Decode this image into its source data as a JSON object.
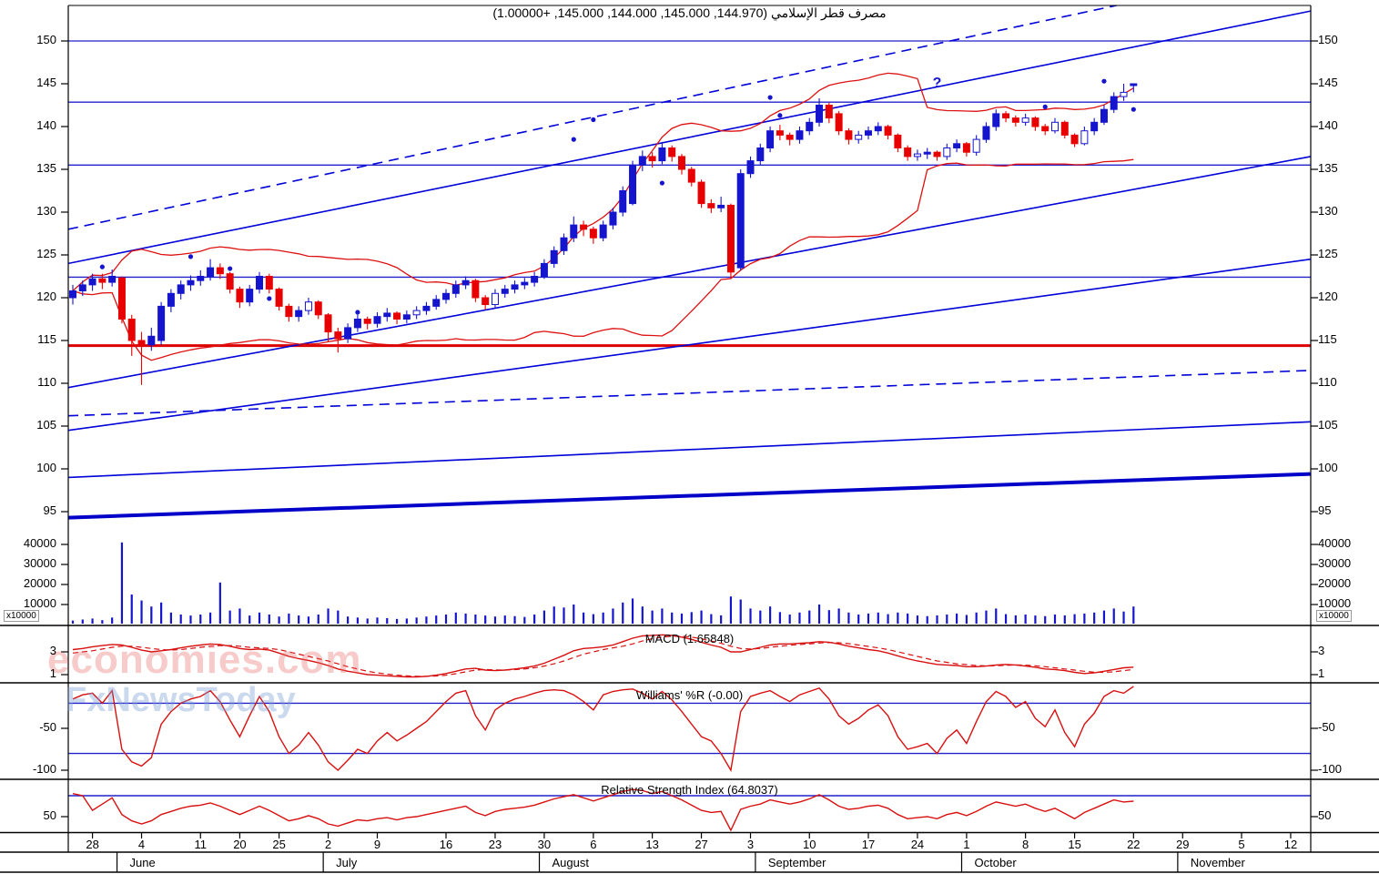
{
  "title": "مصرف قطر الإسلامي (144.970, 145.000, 144.000, 145.000, +1.00000)",
  "watermark": {
    "line1": "economies.com",
    "line2": "FxNewsToday"
  },
  "colors": {
    "background": "#FFFFFF",
    "up": "#1515CE",
    "down": "#E80000",
    "band": "#DD1111",
    "support_blue": "#2222CC",
    "trend_blue": "#0000D8",
    "red_level": "#DD0000",
    "thick_ma": "#0000C8",
    "indicator_red": "#D81010",
    "axis": "#000000"
  },
  "panels": {
    "price": {
      "yticks": [
        150,
        145,
        140,
        135,
        130,
        125,
        120,
        115,
        110,
        105,
        100,
        95
      ],
      "h_levels_blue": [
        150,
        142.85,
        135.5,
        122.4
      ],
      "h_level_red": 114.4
    },
    "volume": {
      "yticks": [
        40000,
        30000,
        20000,
        10000
      ],
      "multiplier_label": "x10000"
    },
    "macd": {
      "label": "MACD (1.65848)",
      "yticks": [
        3,
        1
      ]
    },
    "williams": {
      "label": "Williams' %R (-0.00)",
      "yticks": [
        -50,
        -100
      ],
      "h_levels": [
        -20,
        -80
      ]
    },
    "rsi": {
      "label": "Relative Strength Index (64.8037)",
      "yticks": [
        50
      ],
      "h_levels": [
        70
      ]
    }
  },
  "xaxis": {
    "tick_days": [
      2,
      7,
      13,
      17,
      21,
      26,
      31,
      38,
      43,
      48,
      53,
      59,
      64,
      69,
      75,
      81,
      86,
      91,
      97,
      102,
      108,
      113,
      119,
      124
    ],
    "tick_labels": [
      "28",
      "4",
      "11",
      "20",
      "25",
      "2",
      "9",
      "16",
      "23",
      "30",
      "6",
      "13",
      "27",
      "3",
      "10",
      "17",
      "24",
      "1",
      "8",
      "15",
      "22",
      "29",
      "5",
      "12"
    ],
    "month_sep_days": [
      4.5,
      25.5,
      47.5,
      69.5,
      90.5,
      112.5
    ],
    "month_labels": [
      "June",
      "July",
      "August",
      "September",
      "October",
      "November"
    ]
  },
  "chart_data": {
    "type": "candlestick+indicators",
    "price_ylim": [
      95,
      150
    ],
    "ohlc": [
      [
        120.0,
        121.5,
        119.2,
        120.8
      ],
      [
        120.8,
        122.0,
        120.2,
        121.5
      ],
      [
        121.5,
        122.8,
        120.8,
        122.2
      ],
      [
        122.2,
        122.8,
        121.0,
        121.8
      ],
      [
        121.8,
        123.3,
        121.3,
        122.5
      ],
      [
        122.3,
        122.5,
        117.0,
        117.5
      ],
      [
        117.5,
        118.0,
        113.2,
        115.0
      ],
      [
        115.0,
        116.0,
        109.8,
        114.5
      ],
      [
        114.5,
        116.5,
        113.8,
        115.5
      ],
      [
        115.0,
        119.5,
        114.5,
        119.0
      ],
      [
        119.0,
        121.0,
        118.3,
        120.5
      ],
      [
        120.5,
        122.0,
        119.8,
        121.5
      ],
      [
        121.5,
        122.6,
        120.8,
        122.0
      ],
      [
        122.0,
        123.2,
        121.4,
        122.5
      ],
      [
        122.5,
        124.5,
        122.0,
        123.5
      ],
      [
        123.5,
        124.0,
        122.2,
        122.8
      ],
      [
        122.8,
        123.0,
        120.5,
        121.0
      ],
      [
        121.0,
        121.3,
        118.8,
        119.5
      ],
      [
        119.5,
        121.5,
        119.0,
        121.0
      ],
      [
        121.0,
        123.0,
        120.5,
        122.5
      ],
      [
        122.5,
        122.8,
        120.5,
        121.0
      ],
      [
        121.0,
        121.2,
        118.5,
        119.0
      ],
      [
        119.0,
        119.3,
        117.2,
        117.8
      ],
      [
        117.8,
        119.0,
        117.2,
        118.5
      ],
      [
        118.5,
        120.0,
        118.0,
        119.5
      ],
      [
        119.5,
        119.7,
        117.5,
        118.0
      ],
      [
        118.0,
        118.2,
        114.8,
        116.0
      ],
      [
        116.0,
        116.5,
        113.6,
        115.2
      ],
      [
        115.2,
        117.0,
        114.7,
        116.5
      ],
      [
        116.5,
        118.0,
        116.0,
        117.5
      ],
      [
        117.5,
        117.8,
        116.3,
        117.0
      ],
      [
        117.0,
        118.3,
        116.5,
        117.8
      ],
      [
        117.8,
        118.8,
        117.2,
        118.2
      ],
      [
        118.2,
        118.4,
        116.9,
        117.5
      ],
      [
        117.5,
        118.5,
        117.0,
        118.0
      ],
      [
        118.0,
        119.0,
        117.5,
        118.5
      ],
      [
        118.5,
        119.5,
        118.0,
        119.0
      ],
      [
        119.0,
        120.3,
        118.6,
        119.8
      ],
      [
        119.8,
        121.0,
        119.3,
        120.5
      ],
      [
        120.5,
        122.0,
        120.0,
        121.5
      ],
      [
        121.5,
        122.5,
        121.0,
        122.0
      ],
      [
        122.0,
        122.2,
        119.5,
        120.0
      ],
      [
        120.0,
        120.3,
        118.6,
        119.2
      ],
      [
        119.2,
        121.0,
        118.8,
        120.5
      ],
      [
        120.5,
        121.5,
        120.0,
        121.0
      ],
      [
        121.0,
        122.0,
        120.5,
        121.5
      ],
      [
        121.5,
        122.3,
        121.0,
        121.8
      ],
      [
        121.8,
        123.0,
        121.3,
        122.5
      ],
      [
        122.5,
        124.5,
        122.2,
        124.0
      ],
      [
        124.0,
        126.0,
        123.5,
        125.5
      ],
      [
        125.5,
        127.5,
        125.0,
        127.0
      ],
      [
        127.0,
        129.5,
        126.5,
        128.5
      ],
      [
        128.5,
        129.0,
        127.2,
        128.0
      ],
      [
        128.0,
        128.3,
        126.3,
        127.0
      ],
      [
        127.0,
        129.0,
        126.6,
        128.5
      ],
      [
        128.5,
        130.5,
        128.0,
        130.0
      ],
      [
        130.0,
        133.0,
        129.5,
        132.5
      ],
      [
        131.0,
        136.0,
        130.8,
        135.5
      ],
      [
        135.5,
        137.2,
        134.8,
        136.5
      ],
      [
        136.5,
        137.0,
        135.2,
        136.0
      ],
      [
        136.0,
        138.2,
        135.6,
        137.5
      ],
      [
        137.5,
        137.8,
        135.9,
        136.5
      ],
      [
        136.5,
        136.8,
        134.4,
        135.0
      ],
      [
        135.0,
        135.3,
        133.0,
        133.5
      ],
      [
        133.5,
        133.8,
        130.5,
        131.0
      ],
      [
        131.0,
        131.5,
        129.9,
        130.5
      ],
      [
        130.5,
        131.8,
        130.0,
        130.8
      ],
      [
        130.8,
        131.0,
        122.3,
        123.0
      ],
      [
        123.5,
        135.0,
        123.2,
        134.5
      ],
      [
        134.5,
        136.5,
        134.0,
        136.0
      ],
      [
        136.0,
        138.0,
        135.5,
        137.5
      ],
      [
        137.5,
        140.0,
        137.0,
        139.5
      ],
      [
        139.5,
        140.2,
        138.4,
        139.0
      ],
      [
        139.0,
        139.3,
        137.8,
        138.5
      ],
      [
        138.5,
        140.0,
        138.0,
        139.5
      ],
      [
        139.5,
        141.0,
        139.0,
        140.5
      ],
      [
        140.5,
        143.3,
        140.0,
        142.5
      ],
      [
        142.5,
        142.8,
        140.4,
        141.0
      ],
      [
        141.5,
        141.8,
        139.0,
        139.5
      ],
      [
        139.5,
        139.8,
        137.9,
        138.5
      ],
      [
        138.5,
        139.5,
        138.0,
        139.0
      ],
      [
        139.0,
        140.0,
        138.5,
        139.5
      ],
      [
        139.5,
        140.5,
        139.0,
        140.0
      ],
      [
        140.0,
        140.2,
        138.5,
        139.0
      ],
      [
        139.0,
        139.2,
        137.0,
        137.5
      ],
      [
        137.5,
        137.8,
        136.0,
        136.5
      ],
      [
        136.5,
        137.3,
        136.0,
        136.8
      ],
      [
        136.8,
        137.5,
        136.2,
        137.0
      ],
      [
        137.0,
        137.2,
        136.0,
        136.5
      ],
      [
        136.5,
        138.0,
        136.1,
        137.5
      ],
      [
        137.5,
        138.5,
        137.0,
        138.0
      ],
      [
        138.0,
        138.2,
        136.5,
        137.0
      ],
      [
        137.0,
        139.0,
        136.6,
        138.5
      ],
      [
        138.5,
        140.5,
        138.1,
        140.0
      ],
      [
        140.0,
        142.0,
        139.5,
        141.5
      ],
      [
        141.5,
        141.8,
        140.5,
        141.0
      ],
      [
        141.0,
        141.3,
        140.0,
        140.5
      ],
      [
        140.5,
        141.5,
        140.1,
        141.0
      ],
      [
        141.0,
        141.2,
        139.5,
        140.0
      ],
      [
        140.0,
        140.3,
        139.0,
        139.5
      ],
      [
        139.5,
        141.0,
        139.2,
        140.5
      ],
      [
        140.5,
        140.7,
        138.6,
        139.0
      ],
      [
        139.0,
        139.2,
        137.6,
        138.0
      ],
      [
        138.0,
        140.0,
        137.8,
        139.5
      ],
      [
        139.5,
        141.0,
        139.0,
        140.5
      ],
      [
        140.5,
        142.5,
        140.2,
        142.0
      ],
      [
        142.0,
        144.0,
        141.6,
        143.5
      ],
      [
        143.5,
        145.0,
        143.0,
        144.0
      ],
      [
        144.97,
        145.0,
        144.0,
        145.0
      ]
    ],
    "hollow_days": [
      24,
      35,
      43,
      73,
      80,
      86,
      89,
      92,
      96,
      97,
      100,
      103,
      107
    ],
    "volume": [
      2000,
      2500,
      3000,
      2200,
      3500,
      41000,
      15000,
      12000,
      9000,
      11000,
      6000,
      5000,
      4500,
      5000,
      6000,
      21000,
      7000,
      8000,
      4500,
      6000,
      5000,
      4000,
      5500,
      4500,
      4000,
      5000,
      8000,
      7000,
      4000,
      3500,
      3000,
      3500,
      3200,
      2800,
      3000,
      3500,
      4000,
      4500,
      5000,
      6000,
      5500,
      5000,
      4500,
      4000,
      4500,
      4200,
      3800,
      5000,
      7000,
      9000,
      8500,
      10000,
      6000,
      5200,
      6000,
      8000,
      11000,
      13000,
      9000,
      7000,
      8000,
      6000,
      5500,
      6200,
      7000,
      5200,
      4600,
      14000,
      12500,
      8000,
      7000,
      9000,
      6200,
      5000,
      6000,
      7000,
      10000,
      7200,
      8000,
      6000,
      5000,
      5500,
      6000,
      5200,
      6000,
      5500,
      4500,
      4200,
      4600,
      5000,
      5500,
      4800,
      6000,
      7000,
      8000,
      5200,
      4600,
      5000,
      4500,
      4200,
      5000,
      4600,
      5200,
      5500,
      6000,
      7000,
      8000,
      6500,
      9000
    ],
    "macd_line": [
      3.2,
      3.3,
      3.45,
      3.55,
      3.65,
      3.6,
      3.4,
      3.15,
      3.0,
      3.1,
      3.2,
      3.35,
      3.5,
      3.6,
      3.7,
      3.65,
      3.5,
      3.3,
      3.2,
      3.25,
      3.15,
      2.9,
      2.6,
      2.4,
      2.25,
      2.05,
      1.8,
      1.5,
      1.3,
      1.15,
      1.0,
      0.95,
      0.9,
      0.85,
      0.8,
      0.8,
      0.85,
      0.95,
      1.1,
      1.3,
      1.5,
      1.55,
      1.4,
      1.35,
      1.4,
      1.5,
      1.6,
      1.75,
      2.0,
      2.35,
      2.7,
      3.1,
      3.3,
      3.35,
      3.45,
      3.6,
      3.9,
      4.2,
      4.4,
      4.45,
      4.5,
      4.45,
      4.3,
      4.1,
      3.85,
      3.6,
      3.4,
      3.0,
      3.0,
      3.2,
      3.4,
      3.6,
      3.7,
      3.7,
      3.75,
      3.8,
      3.9,
      3.85,
      3.7,
      3.5,
      3.35,
      3.2,
      3.1,
      2.9,
      2.65,
      2.4,
      2.2,
      2.05,
      1.9,
      1.85,
      1.8,
      1.7,
      1.7,
      1.75,
      1.85,
      1.9,
      1.85,
      1.75,
      1.65,
      1.5,
      1.45,
      1.35,
      1.2,
      1.1,
      1.15,
      1.3,
      1.45,
      1.6,
      1.66
    ],
    "macd_signal": [
      2.9,
      3.0,
      3.1,
      3.25,
      3.4,
      3.5,
      3.5,
      3.4,
      3.3,
      3.2,
      3.15,
      3.2,
      3.3,
      3.4,
      3.5,
      3.55,
      3.55,
      3.5,
      3.4,
      3.35,
      3.3,
      3.2,
      3.0,
      2.8,
      2.6,
      2.4,
      2.2,
      1.95,
      1.7,
      1.5,
      1.3,
      1.15,
      1.05,
      0.95,
      0.9,
      0.85,
      0.85,
      0.88,
      0.95,
      1.08,
      1.25,
      1.4,
      1.45,
      1.42,
      1.4,
      1.44,
      1.5,
      1.6,
      1.75,
      1.95,
      2.2,
      2.5,
      2.8,
      3.0,
      3.2,
      3.35,
      3.5,
      3.7,
      3.95,
      4.15,
      4.3,
      4.38,
      4.38,
      4.3,
      4.15,
      3.95,
      3.75,
      3.5,
      3.3,
      3.25,
      3.3,
      3.4,
      3.5,
      3.58,
      3.65,
      3.7,
      3.78,
      3.82,
      3.8,
      3.72,
      3.6,
      3.48,
      3.35,
      3.2,
      3.0,
      2.8,
      2.6,
      2.4,
      2.2,
      2.08,
      1.95,
      1.88,
      1.8,
      1.77,
      1.78,
      1.82,
      1.85,
      1.83,
      1.78,
      1.7,
      1.6,
      1.5,
      1.4,
      1.3,
      1.22,
      1.2,
      1.25,
      1.35,
      1.45
    ],
    "williams_r": [
      -15,
      -10,
      -8,
      -20,
      -5,
      -75,
      -90,
      -95,
      -85,
      -45,
      -30,
      -20,
      -15,
      -12,
      -5,
      -18,
      -40,
      -60,
      -35,
      -12,
      -30,
      -60,
      -80,
      -70,
      -55,
      -70,
      -90,
      -100,
      -88,
      -75,
      -80,
      -65,
      -55,
      -65,
      -58,
      -50,
      -42,
      -30,
      -18,
      -8,
      -5,
      -35,
      -52,
      -28,
      -20,
      -15,
      -12,
      -8,
      -5,
      -4,
      -5,
      -10,
      -18,
      -28,
      -10,
      -6,
      -4,
      -3,
      -8,
      -15,
      -6,
      -16,
      -30,
      -45,
      -60,
      -65,
      -80,
      -100,
      -30,
      -12,
      -8,
      -5,
      -12,
      -18,
      -10,
      -6,
      -2,
      -15,
      -35,
      -45,
      -38,
      -28,
      -22,
      -35,
      -60,
      -75,
      -72,
      -68,
      -80,
      -62,
      -52,
      -68,
      -42,
      -18,
      -6,
      -12,
      -25,
      -18,
      -38,
      -48,
      -28,
      -55,
      -72,
      -45,
      -32,
      -12,
      -5,
      -8,
      0
    ],
    "rsi": [
      72,
      70,
      56,
      62,
      68,
      52,
      46,
      43,
      46,
      52,
      55,
      58,
      60,
      61,
      63,
      60,
      56,
      52,
      56,
      60,
      56,
      51,
      46,
      48,
      51,
      48,
      43,
      41,
      44,
      47,
      46,
      48,
      49,
      47,
      49,
      50,
      52,
      54,
      56,
      58,
      60,
      54,
      51,
      55,
      57,
      58,
      59,
      61,
      64,
      67,
      69,
      71,
      68,
      65,
      68,
      71,
      74,
      76,
      75,
      72,
      74,
      70,
      66,
      61,
      56,
      54,
      55,
      32,
      57,
      60,
      62,
      66,
      64,
      62,
      64,
      67,
      71,
      66,
      60,
      57,
      58,
      60,
      61,
      58,
      52,
      48,
      49,
      50,
      48,
      52,
      54,
      51,
      55,
      60,
      64,
      62,
      60,
      62,
      58,
      55,
      58,
      53,
      48,
      54,
      58,
      62,
      66,
      64,
      64.8
    ],
    "bollinger_period": 20,
    "trendlines": [
      {
        "left_price": 128.0,
        "right_price": 159.0,
        "dashed": true,
        "width": 1.6
      },
      {
        "left_price": 124.0,
        "right_price": 153.5,
        "dashed": false,
        "width": 1.6
      },
      {
        "left_price": 109.5,
        "right_price": 136.5,
        "dashed": false,
        "width": 1.6
      },
      {
        "left_price": 104.5,
        "right_price": 124.5,
        "dashed": false,
        "width": 1.6
      },
      {
        "left_price": 106.2,
        "right_price": 111.5,
        "dashed": true,
        "width": 1.6
      },
      {
        "left_price": 99.0,
        "right_price": 105.5,
        "dashed": false,
        "width": 1.6
      },
      {
        "left_price": 94.3,
        "right_price": 99.4,
        "dashed": false,
        "width": 4
      }
    ],
    "markers": {
      "dots": [
        [
          3,
          123.6
        ],
        [
          12,
          124.8
        ],
        [
          16,
          123.4
        ],
        [
          20,
          119.9
        ],
        [
          29,
          118.3
        ],
        [
          51,
          138.5
        ],
        [
          53,
          140.8
        ],
        [
          60,
          133.4
        ],
        [
          71,
          143.4
        ],
        [
          72,
          141.3
        ],
        [
          99,
          142.3
        ],
        [
          105,
          145.3
        ],
        [
          108,
          142.0
        ]
      ],
      "question": {
        "day": 88,
        "price": 144.6,
        "glyph": "?"
      }
    }
  }
}
